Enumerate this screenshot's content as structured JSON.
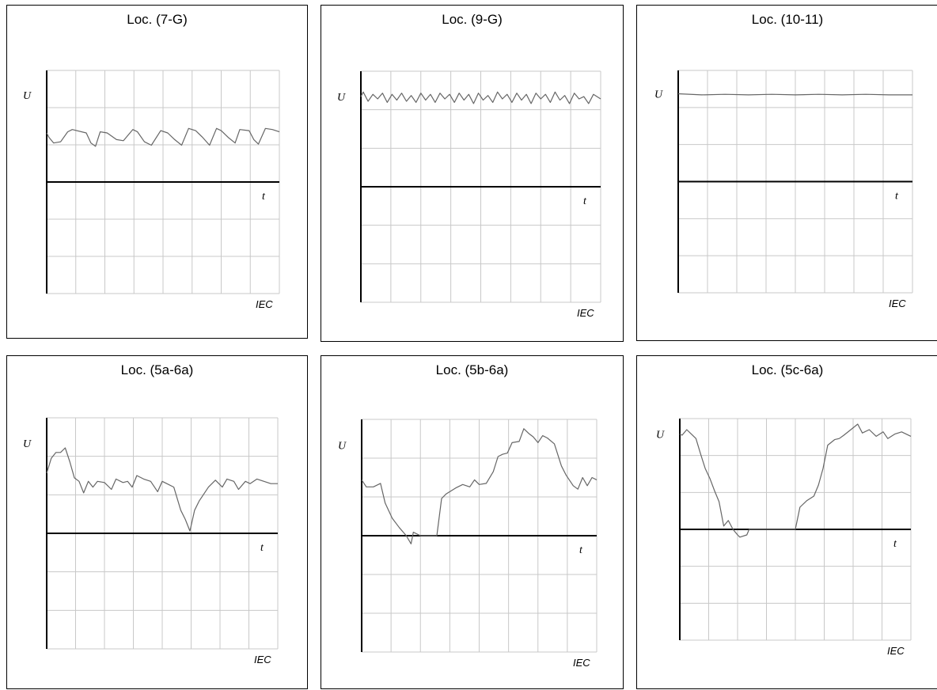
{
  "labels": {
    "y_axis": "U",
    "x_axis": "t",
    "mark": "IEC"
  },
  "colors": {
    "grid": "#c8c8c8",
    "axis": "#000000",
    "trace": "#666666",
    "frame": "#000000"
  },
  "chart_data": [
    {
      "type": "line",
      "title": "Loc. (7-G)",
      "ylim": [
        -1,
        1
      ],
      "xlim": [
        0,
        1
      ],
      "x_divisions": 8,
      "y_divisions": 6,
      "series": [
        {
          "x": [
            0,
            0.01,
            0.03,
            0.06,
            0.09,
            0.11,
            0.17,
            0.19,
            0.21,
            0.23,
            0.26,
            0.3,
            0.33,
            0.37,
            0.39,
            0.42,
            0.45,
            0.49,
            0.52,
            0.55,
            0.58,
            0.61,
            0.64,
            0.67,
            0.7,
            0.73,
            0.75,
            0.78,
            0.81,
            0.83,
            0.87,
            0.89,
            0.91,
            0.94,
            0.97,
            1.0
          ],
          "y": [
            0.44,
            0.4,
            0.35,
            0.36,
            0.45,
            0.47,
            0.44,
            0.35,
            0.32,
            0.45,
            0.44,
            0.38,
            0.37,
            0.47,
            0.45,
            0.36,
            0.33,
            0.46,
            0.44,
            0.38,
            0.33,
            0.48,
            0.46,
            0.4,
            0.33,
            0.48,
            0.46,
            0.4,
            0.35,
            0.47,
            0.46,
            0.38,
            0.34,
            0.48,
            0.47,
            0.45
          ]
        }
      ]
    },
    {
      "type": "line",
      "title": "Loc. (9-G)",
      "ylim": [
        -1,
        1
      ],
      "xlim": [
        0,
        1
      ],
      "x_divisions": 8,
      "y_divisions": 6,
      "series": [
        {
          "x": [
            0,
            0.01,
            0.03,
            0.05,
            0.07,
            0.09,
            0.11,
            0.13,
            0.15,
            0.17,
            0.19,
            0.21,
            0.23,
            0.25,
            0.27,
            0.29,
            0.31,
            0.33,
            0.35,
            0.37,
            0.39,
            0.41,
            0.43,
            0.45,
            0.47,
            0.49,
            0.51,
            0.53,
            0.55,
            0.57,
            0.59,
            0.61,
            0.63,
            0.65,
            0.67,
            0.69,
            0.71,
            0.73,
            0.75,
            0.77,
            0.79,
            0.81,
            0.83,
            0.85,
            0.87,
            0.89,
            0.91,
            0.93,
            0.95,
            0.97,
            1.0
          ],
          "y": [
            0.78,
            0.82,
            0.74,
            0.8,
            0.76,
            0.81,
            0.73,
            0.8,
            0.75,
            0.81,
            0.74,
            0.79,
            0.73,
            0.81,
            0.75,
            0.8,
            0.73,
            0.81,
            0.76,
            0.8,
            0.73,
            0.81,
            0.75,
            0.8,
            0.72,
            0.81,
            0.75,
            0.79,
            0.73,
            0.82,
            0.76,
            0.8,
            0.73,
            0.81,
            0.75,
            0.8,
            0.72,
            0.81,
            0.76,
            0.8,
            0.73,
            0.82,
            0.75,
            0.79,
            0.72,
            0.81,
            0.76,
            0.78,
            0.72,
            0.8,
            0.76
          ]
        }
      ]
    },
    {
      "type": "line",
      "title": "Loc. (10-11)",
      "ylim": [
        -1,
        1
      ],
      "xlim": [
        0,
        1
      ],
      "x_divisions": 8,
      "y_divisions": 6,
      "series": [
        {
          "x": [
            0,
            0.1,
            0.2,
            0.3,
            0.4,
            0.5,
            0.6,
            0.7,
            0.8,
            0.9,
            1.0
          ],
          "y": [
            0.79,
            0.78,
            0.785,
            0.78,
            0.785,
            0.78,
            0.785,
            0.78,
            0.785,
            0.78,
            0.78
          ]
        }
      ]
    },
    {
      "type": "line",
      "title": "Loc. (5a-6a)",
      "ylim": [
        -1,
        1
      ],
      "xlim": [
        0,
        1
      ],
      "x_divisions": 8,
      "y_divisions": 6,
      "series": [
        {
          "x": [
            0,
            0.02,
            0.04,
            0.06,
            0.08,
            0.1,
            0.12,
            0.14,
            0.16,
            0.18,
            0.2,
            0.22,
            0.25,
            0.28,
            0.3,
            0.33,
            0.35,
            0.37,
            0.39,
            0.42,
            0.45,
            0.48,
            0.5,
            0.52,
            0.55,
            0.58,
            0.6,
            0.62,
            0.64,
            0.66,
            0.7,
            0.73,
            0.76,
            0.78,
            0.81,
            0.83,
            0.86,
            0.88,
            0.91,
            0.94,
            0.97,
            1.0
          ],
          "y": [
            0.52,
            0.65,
            0.7,
            0.7,
            0.74,
            0.62,
            0.48,
            0.45,
            0.35,
            0.45,
            0.4,
            0.45,
            0.44,
            0.38,
            0.47,
            0.44,
            0.45,
            0.4,
            0.5,
            0.47,
            0.45,
            0.36,
            0.45,
            0.43,
            0.4,
            0.2,
            0.12,
            0.02,
            0.2,
            0.28,
            0.4,
            0.46,
            0.4,
            0.47,
            0.45,
            0.38,
            0.45,
            0.43,
            0.47,
            0.45,
            0.43,
            0.43
          ]
        }
      ]
    },
    {
      "type": "line",
      "title": "Loc. (5b-6a)",
      "ylim": [
        -1,
        1
      ],
      "xlim": [
        0,
        1
      ],
      "x_divisions": 8,
      "y_divisions": 6,
      "series": [
        {
          "x": [
            0,
            0.02,
            0.05,
            0.08,
            0.1,
            0.13,
            0.16,
            0.19,
            0.21,
            0.22,
            0.25,
            0.32,
            0.34,
            0.36,
            0.4,
            0.43,
            0.46,
            0.48,
            0.5,
            0.53,
            0.56,
            0.58,
            0.6,
            0.62,
            0.64,
            0.67,
            0.69,
            0.71,
            0.73,
            0.75,
            0.77,
            0.79,
            0.82,
            0.85,
            0.87,
            0.9,
            0.92,
            0.94,
            0.96,
            0.98,
            1.0
          ],
          "y": [
            0.48,
            0.42,
            0.42,
            0.45,
            0.28,
            0.15,
            0.07,
            0.0,
            -0.07,
            0.03,
            0.0,
            0.0,
            0.32,
            0.36,
            0.41,
            0.44,
            0.42,
            0.48,
            0.44,
            0.45,
            0.55,
            0.68,
            0.7,
            0.71,
            0.8,
            0.81,
            0.92,
            0.88,
            0.85,
            0.8,
            0.86,
            0.84,
            0.79,
            0.6,
            0.52,
            0.43,
            0.4,
            0.5,
            0.43,
            0.5,
            0.48
          ]
        }
      ]
    },
    {
      "type": "line",
      "title": "Loc. (5c-6a)",
      "ylim": [
        -1,
        1
      ],
      "xlim": [
        0,
        1
      ],
      "x_divisions": 8,
      "y_divisions": 6,
      "series": [
        {
          "x": [
            0,
            0.01,
            0.03,
            0.05,
            0.07,
            0.09,
            0.11,
            0.13,
            0.15,
            0.17,
            0.19,
            0.21,
            0.23,
            0.25,
            0.26,
            0.29,
            0.3,
            0.34,
            0.38,
            0.42,
            0.47,
            0.5,
            0.52,
            0.55,
            0.58,
            0.6,
            0.62,
            0.64,
            0.67,
            0.69,
            0.71,
            0.74,
            0.77,
            0.79,
            0.82,
            0.85,
            0.88,
            0.9,
            0.93,
            0.96,
            1.0
          ],
          "y": [
            0.86,
            0.85,
            0.9,
            0.86,
            0.82,
            0.68,
            0.55,
            0.46,
            0.35,
            0.25,
            0.03,
            0.08,
            0.0,
            -0.05,
            -0.07,
            -0.05,
            0.0,
            0.0,
            0.0,
            0.0,
            0.0,
            0.0,
            0.2,
            0.26,
            0.3,
            0.4,
            0.55,
            0.76,
            0.81,
            0.82,
            0.85,
            0.9,
            0.95,
            0.87,
            0.9,
            0.84,
            0.88,
            0.82,
            0.86,
            0.88,
            0.84
          ]
        }
      ]
    }
  ]
}
